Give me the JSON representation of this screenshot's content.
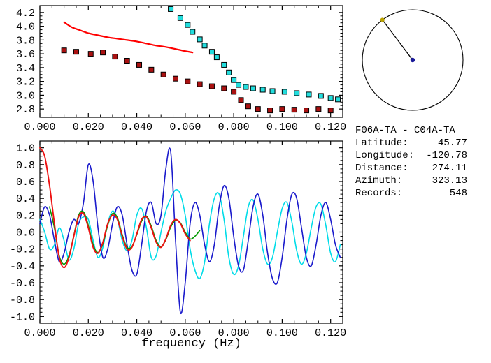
{
  "info_panel": {
    "station_pair": "F06A-TA - C04A-TA",
    "fields": [
      {
        "name": "latitude",
        "label": "Latitude:",
        "value": "45.77"
      },
      {
        "name": "longitude",
        "label": "Longitude:",
        "value": "-120.78"
      },
      {
        "name": "distance",
        "label": "Distance:",
        "value": "274.11"
      },
      {
        "name": "azimuth",
        "label": "Azimuth:",
        "value": "323.13"
      },
      {
        "name": "records",
        "label": "Records:",
        "value": "548"
      }
    ]
  },
  "azimuth_dial": {
    "azimuth_deg": 323.13,
    "circle_color": "#000000",
    "line_color": "#000000",
    "center_dot_color": "#1a1a99",
    "end_dot_color": "#b8a000"
  },
  "chart_data": [
    {
      "id": "dispersion",
      "type": "scatter",
      "title": "",
      "xlabel": "",
      "ylabel": "",
      "xlim": [
        0,
        0.125
      ],
      "ylim": [
        2.68,
        4.3
      ],
      "grid": false,
      "legend": false,
      "xticks": [
        0,
        0.02,
        0.04,
        0.06,
        0.08,
        0.1,
        0.12
      ],
      "xtick_labels": [
        "0.000",
        "0.020",
        "0.040",
        "0.060",
        "0.080",
        "0.100",
        "0.120"
      ],
      "yticks": [
        4.2,
        4.0,
        3.8,
        3.6,
        3.4,
        3.2,
        3.0,
        2.8
      ],
      "ytick_labels": [
        "4.2",
        "4.0",
        "3.8",
        "3.6",
        "3.4",
        "3.2",
        "3.0",
        "2.8"
      ],
      "xminor_step": 0.005,
      "yminor_step": 0.05,
      "series": [
        {
          "name": "smoothed-dispersion-curve",
          "style": "line",
          "smooth": true,
          "color": "#ff0000",
          "width": 2.2,
          "x": [
            0.01,
            0.013,
            0.016,
            0.02,
            0.024,
            0.028,
            0.032,
            0.036,
            0.04,
            0.044,
            0.048,
            0.052,
            0.056,
            0.06,
            0.063
          ],
          "y": [
            4.06,
            3.99,
            3.95,
            3.9,
            3.87,
            3.84,
            3.82,
            3.8,
            3.78,
            3.75,
            3.72,
            3.7,
            3.67,
            3.64,
            3.62
          ]
        },
        {
          "name": "measured-dispersion-squares",
          "style": "square",
          "color": "#aa1111",
          "edge": "#000000",
          "size": 7,
          "x": [
            0.01,
            0.015,
            0.021,
            0.026,
            0.031,
            0.036,
            0.041,
            0.046,
            0.051,
            0.056,
            0.061,
            0.066,
            0.071,
            0.076,
            0.08,
            0.083,
            0.086,
            0.09,
            0.095,
            0.1,
            0.105,
            0.11,
            0.115,
            0.12
          ],
          "y": [
            3.65,
            3.63,
            3.6,
            3.62,
            3.56,
            3.5,
            3.44,
            3.37,
            3.3,
            3.24,
            3.2,
            3.16,
            3.13,
            3.1,
            3.05,
            2.93,
            2.84,
            2.8,
            2.78,
            2.8,
            2.79,
            2.78,
            2.8,
            2.78
          ]
        },
        {
          "name": "reference-dispersion-squares",
          "style": "square",
          "color": "#22dddd",
          "edge": "#000000",
          "size": 7,
          "x": [
            0.054,
            0.058,
            0.061,
            0.063,
            0.066,
            0.068,
            0.071,
            0.073,
            0.076,
            0.078,
            0.08,
            0.082,
            0.085,
            0.088,
            0.092,
            0.096,
            0.101,
            0.106,
            0.111,
            0.116,
            0.12,
            0.123
          ],
          "y": [
            4.25,
            4.12,
            4.02,
            3.92,
            3.81,
            3.72,
            3.63,
            3.55,
            3.44,
            3.33,
            3.22,
            3.15,
            3.12,
            3.1,
            3.08,
            3.06,
            3.05,
            3.03,
            3.01,
            2.99,
            2.96,
            2.94
          ]
        }
      ]
    },
    {
      "id": "waveforms",
      "type": "line",
      "title": "",
      "xlabel": "frequency (Hz)",
      "ylabel": "",
      "xlim": [
        0,
        0.125
      ],
      "ylim": [
        -1.08,
        1.08
      ],
      "grid": false,
      "legend": false,
      "zero_line": true,
      "xticks": [
        0,
        0.02,
        0.04,
        0.06,
        0.08,
        0.1,
        0.12
      ],
      "xtick_labels": [
        "0.000",
        "0.020",
        "0.040",
        "0.060",
        "0.080",
        "0.100",
        "0.120"
      ],
      "yticks": [
        1.0,
        0.8,
        0.6,
        0.4,
        0.2,
        0.0,
        -0.2,
        -0.4,
        -0.6,
        -0.8,
        -1.0
      ],
      "ytick_labels": [
        "1.0",
        "0.8",
        "0.6",
        "0.4",
        "0.2",
        "0.0",
        "-0.2",
        "-0.4",
        "-0.6",
        "-0.8",
        "-1.0"
      ],
      "xminor_step": 0.005,
      "yminor_step": 0.05,
      "series": [
        {
          "name": "trace-cyan",
          "style": "line",
          "smooth": true,
          "color": "#00dce8",
          "width": 1.6,
          "x0": 0,
          "dx": 0.002,
          "y": [
            0.15,
            0.0,
            -0.2,
            -0.15,
            0.05,
            -0.1,
            -0.33,
            -0.2,
            0.1,
            0.18,
            0.15,
            -0.1,
            -0.3,
            -0.18,
            0.1,
            0.25,
            0.15,
            -0.1,
            -0.22,
            -0.1,
            0.2,
            0.28,
            0.05,
            -0.3,
            -0.28,
            0.0,
            0.25,
            0.4,
            0.5,
            0.45,
            0.2,
            -0.2,
            -0.45,
            -0.55,
            -0.35,
            0.1,
            0.4,
            0.45,
            0.15,
            -0.3,
            -0.5,
            -0.4,
            -0.05,
            0.3,
            0.38,
            0.15,
            -0.2,
            -0.38,
            -0.3,
            0.0,
            0.28,
            0.35,
            0.12,
            -0.22,
            -0.38,
            -0.25,
            0.05,
            0.3,
            0.33,
            0.08,
            -0.25,
            -0.35,
            -0.15
          ]
        },
        {
          "name": "trace-blue",
          "style": "line",
          "smooth": true,
          "color": "#1a1acc",
          "width": 1.6,
          "x0": 0,
          "dx": 0.002,
          "y": [
            0.1,
            0.3,
            0.2,
            -0.1,
            -0.35,
            -0.25,
            0.0,
            0.15,
            0.1,
            0.35,
            0.8,
            0.6,
            0.05,
            -0.3,
            -0.2,
            0.1,
            0.3,
            0.2,
            -0.15,
            -0.45,
            -0.5,
            -0.15,
            0.25,
            0.35,
            0.1,
            0.2,
            0.75,
            0.95,
            -0.1,
            -0.95,
            -0.6,
            0.1,
            0.35,
            0.2,
            -0.15,
            -0.35,
            -0.15,
            0.3,
            0.55,
            0.4,
            -0.05,
            -0.4,
            -0.45,
            -0.1,
            0.3,
            0.45,
            0.2,
            -0.25,
            -0.55,
            -0.6,
            -0.3,
            0.15,
            0.45,
            0.4,
            0.05,
            -0.3,
            -0.4,
            -0.15,
            0.2,
            0.35,
            0.15,
            -0.15,
            -0.3
          ]
        },
        {
          "name": "trace-green",
          "style": "line",
          "smooth": true,
          "color": "#009900",
          "width": 1.6,
          "x0": 0.004,
          "dx": 0.002,
          "y": [
            0.3,
            0.05,
            -0.28,
            -0.38,
            -0.28,
            -0.04,
            0.2,
            0.24,
            0.08,
            -0.15,
            -0.24,
            -0.14,
            0.08,
            0.22,
            0.17,
            -0.03,
            -0.18,
            -0.17,
            -0.03,
            0.13,
            0.19,
            0.07,
            -0.1,
            -0.17,
            -0.09,
            0.06,
            0.14,
            0.11,
            0.0,
            -0.08,
            -0.05,
            0.02
          ]
        },
        {
          "name": "trace-red",
          "style": "line",
          "smooth": true,
          "color": "#ee1111",
          "width": 1.9,
          "x0": 0,
          "dx": 0.002,
          "y": [
            1.0,
            0.9,
            0.55,
            0.1,
            -0.3,
            -0.42,
            -0.3,
            -0.05,
            0.18,
            0.22,
            0.05,
            -0.18,
            -0.25,
            -0.12,
            0.1,
            0.2,
            0.15,
            -0.05,
            -0.2,
            -0.18,
            -0.02,
            0.15,
            0.18,
            0.05,
            -0.12,
            -0.18,
            -0.08,
            0.08,
            0.15,
            0.1,
            -0.02,
            -0.1
          ]
        }
      ]
    }
  ]
}
